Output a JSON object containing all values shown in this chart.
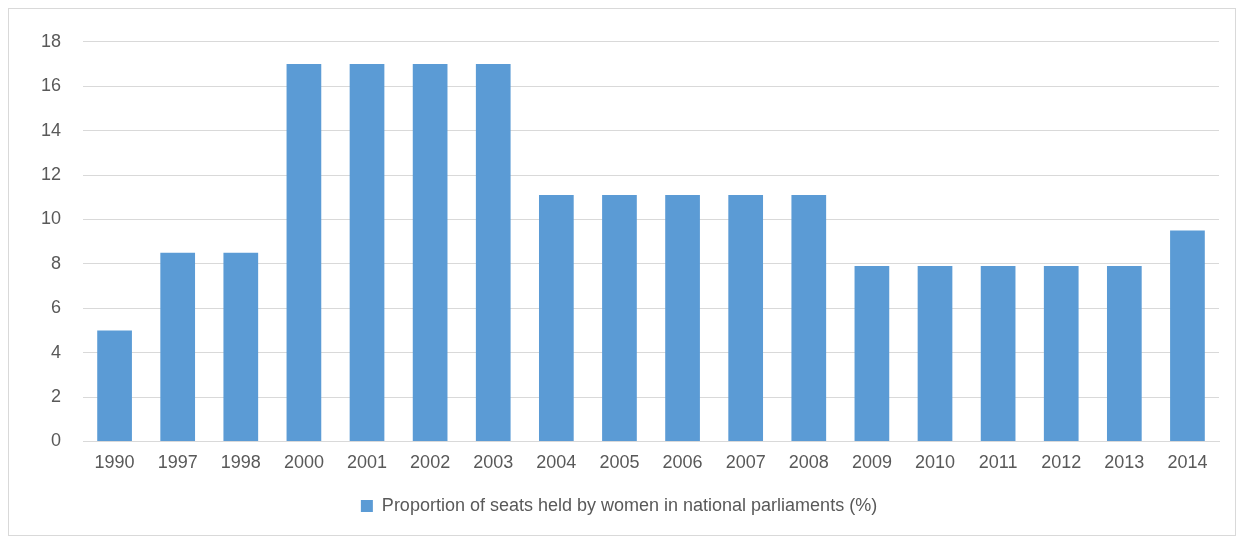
{
  "chart_data": {
    "type": "bar",
    "categories": [
      "1990",
      "1997",
      "1998",
      "2000",
      "2001",
      "2002",
      "2003",
      "2004",
      "2005",
      "2006",
      "2007",
      "2008",
      "2009",
      "2010",
      "2011",
      "2012",
      "2013",
      "2014"
    ],
    "series": [
      {
        "name": "Proportion of seats held by women in national parliaments (%)",
        "color": "#5b9bd5",
        "values": [
          5,
          8.5,
          8.5,
          17,
          17,
          17,
          17,
          11.1,
          11.1,
          11.1,
          11.1,
          11.1,
          7.9,
          7.9,
          7.9,
          7.9,
          7.9,
          9.5
        ]
      }
    ],
    "ylim": [
      0,
      18
    ],
    "yticks": [
      0,
      2,
      4,
      6,
      8,
      10,
      12,
      14,
      16,
      18
    ],
    "grid": "y",
    "legend": "bottom"
  }
}
